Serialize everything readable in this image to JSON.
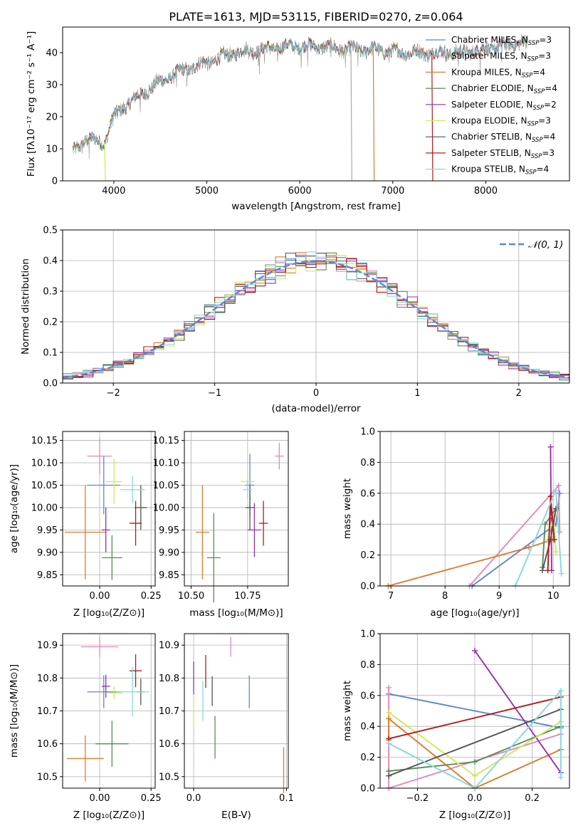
{
  "colors": {
    "Chabrier MILES": "#5b86d6",
    "Salpeter MILES": "#e488b8",
    "Kroupa MILES": "#e07b2a",
    "Chabrier ELODIE": "#5a8a5a",
    "Salpeter ELODIE": "#9a2fae",
    "Kroupa ELODIE": "#cfe85a",
    "Chabrier STELIB": "#555555",
    "Salpeter STELIB": "#b81818",
    "Kroupa STELIB": "#85d8e0",
    "normal": "#5b86d6"
  },
  "chart_data": [
    {
      "id": "spectrum",
      "type": "line",
      "title": "PLATE=1613, MJD=53115, FIBERID=0270, z=0.064",
      "xlabel": "wavelength [Angstrom, rest frame]",
      "ylabel": "Flux [fλ10⁻¹⁷ erg cm⁻² s⁻¹ A⁻¹]",
      "xlim": [
        3450,
        8900
      ],
      "ylim": [
        0,
        48
      ],
      "xticks": [
        4000,
        5000,
        6000,
        7000,
        8000
      ],
      "yticks": [
        0,
        10,
        20,
        30,
        40
      ],
      "legend_position": "top-right",
      "continuum": {
        "x": [
          3560,
          3700,
          3900,
          4000,
          4100,
          4300,
          4500,
          4700,
          5000,
          5300,
          5600,
          5900,
          6200,
          6500,
          6800,
          7100,
          7400,
          7700,
          8000,
          8300,
          8450
        ],
        "y": [
          9,
          13,
          12,
          20,
          23,
          27,
          31,
          34,
          37,
          40,
          41,
          42,
          42,
          41,
          41,
          40,
          40,
          40,
          41,
          43,
          43
        ]
      },
      "series": [
        {
          "name": "Chabrier MILES, N_SSP=3",
          "base": "Chabrier MILES",
          "nssp": "3"
        },
        {
          "name": "Salpeter MILES, N_SSP=3",
          "base": "Salpeter MILES",
          "nssp": "3"
        },
        {
          "name": "Kroupa MILES, N_SSP=4",
          "base": "Kroupa MILES",
          "nssp": "4"
        },
        {
          "name": "Chabrier ELODIE, N_SSP=4",
          "base": "Chabrier ELODIE",
          "nssp": "4"
        },
        {
          "name": "Salpeter ELODIE, N_SSP=2",
          "base": "Salpeter ELODIE",
          "nssp": "2"
        },
        {
          "name": "Kroupa ELODIE, N_SSP=3",
          "base": "Kroupa ELODIE",
          "nssp": "3"
        },
        {
          "name": "Chabrier STELIB, N_SSP=4",
          "base": "Chabrier STELIB",
          "nssp": "4"
        },
        {
          "name": "Salpeter STELIB, N_SSP=3",
          "base": "Salpeter STELIB",
          "nssp": "3"
        },
        {
          "name": "Kroupa STELIB, N_SSP=4",
          "base": "Kroupa STELIB",
          "nssp": "4"
        }
      ],
      "drops": [
        {
          "x": 3900,
          "to": 0,
          "series": "Kroupa ELODIE"
        },
        {
          "x": 6550,
          "to": 0,
          "series": "data"
        },
        {
          "x": 6790,
          "to": 0,
          "series": "Kroupa MILES"
        },
        {
          "x": 7420,
          "to": 0,
          "series": "Salpeter STELIB"
        }
      ]
    },
    {
      "id": "residuals",
      "type": "area",
      "xlabel": "(data-model)/error",
      "ylabel": "Normed distribution",
      "xlim": [
        -2.5,
        2.5
      ],
      "ylim": [
        0,
        0.5
      ],
      "xticks": [
        -2,
        -1,
        0,
        1,
        2
      ],
      "yticks": [
        0.0,
        0.1,
        0.2,
        0.3,
        0.4,
        0.5
      ],
      "legend": "𝒩(0, 1)",
      "legend_position": "top-right",
      "bin_width": 0.1
    },
    {
      "id": "age-vs-Z",
      "type": "scatter",
      "xlabel": "Z [log₁₀(Z/Z⊙)]",
      "ylabel": "age  [log₁₀(age/yr)]",
      "xlim": [
        -0.18,
        0.27
      ],
      "ylim": [
        9.825,
        10.17
      ],
      "xticks": [
        0.0,
        0.25
      ],
      "yticks": [
        9.85,
        9.9,
        9.95,
        10.0,
        10.05,
        10.1,
        10.15
      ],
      "points": [
        {
          "series": "Chabrier MILES",
          "x": 0.02,
          "xerr": 0.08,
          "y": 10.05,
          "yerr": 0.065
        },
        {
          "series": "Salpeter MILES",
          "x": 0.0,
          "xerr": 0.06,
          "y": 10.115,
          "yerr": 0.04
        },
        {
          "series": "Kroupa MILES",
          "x": -0.07,
          "xerr": 0.1,
          "y": 9.945,
          "yerr": 0.105
        },
        {
          "series": "Chabrier ELODIE",
          "x": 0.06,
          "xerr": 0.05,
          "y": 9.888,
          "yerr": 0.05
        },
        {
          "series": "Salpeter ELODIE",
          "x": 0.03,
          "xerr": 0.02,
          "y": 9.95,
          "yerr": 0.05
        },
        {
          "series": "Kroupa ELODIE",
          "x": 0.07,
          "xerr": 0.04,
          "y": 10.058,
          "yerr": 0.05
        },
        {
          "series": "Chabrier STELIB",
          "x": 0.2,
          "xerr": 0.03,
          "y": 10.0,
          "yerr": 0.05
        },
        {
          "series": "Salpeter STELIB",
          "x": 0.175,
          "xerr": 0.03,
          "y": 9.965,
          "yerr": 0.05
        },
        {
          "series": "Kroupa STELIB",
          "x": 0.16,
          "xerr": 0.06,
          "y": 10.04,
          "yerr": 0.03
        }
      ]
    },
    {
      "id": "age-vs-mass",
      "type": "scatter",
      "xlabel": "mass [log₁₀(M/M⊙)]",
      "ylabel": "",
      "xlim": [
        10.47,
        10.93
      ],
      "ylim": [
        9.825,
        10.17
      ],
      "xticks": [
        10.5,
        10.75
      ],
      "yticks": [
        9.85,
        9.9,
        9.95,
        10.0,
        10.05,
        10.1,
        10.15
      ],
      "points": [
        {
          "series": "Chabrier MILES",
          "x": 10.76,
          "xerr": 0.02,
          "y": 10.05,
          "yerr": 0.07
        },
        {
          "series": "Salpeter MILES",
          "x": 10.89,
          "xerr": 0.02,
          "y": 10.115,
          "yerr": 0.03
        },
        {
          "series": "Kroupa MILES",
          "x": 10.55,
          "xerr": 0.03,
          "y": 9.945,
          "yerr": 0.105
        },
        {
          "series": "Chabrier ELODIE",
          "x": 10.6,
          "xerr": 0.03,
          "y": 9.888,
          "yerr": 0.1
        },
        {
          "series": "Salpeter ELODIE",
          "x": 10.78,
          "xerr": 0.03,
          "y": 9.95,
          "yerr": 0.06
        },
        {
          "series": "Kroupa ELODIE",
          "x": 10.75,
          "xerr": 0.03,
          "y": 10.058,
          "yerr": 0.02
        },
        {
          "series": "Chabrier STELIB",
          "x": 10.76,
          "xerr": 0.02,
          "y": 10.0,
          "yerr": 0.05
        },
        {
          "series": "Salpeter STELIB",
          "x": 10.82,
          "xerr": 0.02,
          "y": 9.965,
          "yerr": 0.05
        },
        {
          "series": "Kroupa STELIB",
          "x": 10.75,
          "xerr": 0.02,
          "y": 10.04,
          "yerr": 0.02
        }
      ]
    },
    {
      "id": "mass-weight-vs-age",
      "type": "line",
      "xlabel": "age  [log₁₀(age/yr)]",
      "ylabel": "mass weight",
      "xlim": [
        6.8,
        10.3
      ],
      "ylim": [
        0,
        1.0
      ],
      "xticks": [
        7,
        8,
        9,
        10
      ],
      "yticks": [
        0.0,
        0.2,
        0.4,
        0.6,
        0.8,
        1.0
      ],
      "series": [
        {
          "series": "Chabrier MILES",
          "x": [
            8.5,
            10.05,
            10.12
          ],
          "y": [
            0.0,
            0.4,
            0.6
          ]
        },
        {
          "series": "Salpeter MILES",
          "x": [
            8.45,
            10.1,
            10.12
          ],
          "y": [
            0.0,
            0.65,
            0.35
          ]
        },
        {
          "series": "Kroupa MILES",
          "x": [
            6.95,
            9.55,
            10.0,
            10.02
          ],
          "y": [
            0.0,
            0.25,
            0.3,
            0.45
          ]
        },
        {
          "series": "Chabrier ELODIE",
          "x": [
            9.8,
            9.85,
            10.05
          ],
          "y": [
            0.12,
            0.4,
            0.5
          ]
        },
        {
          "series": "Salpeter ELODIE",
          "x": [
            9.95,
            9.97
          ],
          "y": [
            0.9,
            0.1
          ]
        },
        {
          "series": "Kroupa ELODIE",
          "x": [
            9.9,
            10.0,
            10.05
          ],
          "y": [
            0.3,
            0.45,
            0.22
          ]
        },
        {
          "series": "Chabrier STELIB",
          "x": [
            9.8,
            9.95,
            10.05
          ],
          "y": [
            0.1,
            0.3,
            0.5
          ]
        },
        {
          "series": "Salpeter STELIB",
          "x": [
            9.9,
            9.95,
            10.02
          ],
          "y": [
            0.1,
            0.58,
            0.3
          ]
        },
        {
          "series": "Kroupa STELIB",
          "x": [
            9.3,
            10.05,
            10.15
          ],
          "y": [
            0.0,
            0.62,
            0.08
          ]
        }
      ]
    },
    {
      "id": "mass-vs-Z",
      "type": "scatter",
      "xlabel": "Z [log₁₀(Z/Z⊙)]",
      "ylabel": "mass [log₁₀(M/M⊙)]",
      "xlim": [
        -0.18,
        0.27
      ],
      "ylim": [
        10.465,
        10.935
      ],
      "xticks": [
        0.0,
        0.25
      ],
      "yticks": [
        10.5,
        10.6,
        10.7,
        10.8,
        10.9
      ],
      "points": [
        {
          "series": "Chabrier MILES",
          "x": 0.02,
          "xerr": 0.08,
          "y": 10.758,
          "yerr": 0.05
        },
        {
          "series": "Salpeter MILES",
          "x": 0.0,
          "xerr": 0.09,
          "y": 10.895,
          "yerr": 0.03
        },
        {
          "series": "Kroupa MILES",
          "x": -0.07,
          "xerr": 0.09,
          "y": 10.555,
          "yerr": 0.07
        },
        {
          "series": "Chabrier ELODIE",
          "x": 0.06,
          "xerr": 0.08,
          "y": 10.6,
          "yerr": 0.07
        },
        {
          "series": "Salpeter ELODIE",
          "x": 0.03,
          "xerr": 0.02,
          "y": 10.775,
          "yerr": 0.035
        },
        {
          "series": "Kroupa ELODIE",
          "x": 0.07,
          "xerr": 0.04,
          "y": 10.755,
          "yerr": 0.02
        },
        {
          "series": "Chabrier STELIB",
          "x": 0.2,
          "xerr": 0.02,
          "y": 10.758,
          "yerr": 0.04
        },
        {
          "series": "Salpeter STELIB",
          "x": 0.175,
          "xerr": 0.03,
          "y": 10.822,
          "yerr": 0.05
        },
        {
          "series": "Kroupa STELIB",
          "x": 0.16,
          "xerr": 0.08,
          "y": 10.758,
          "yerr": 0.075
        }
      ]
    },
    {
      "id": "mass-vs-ebv",
      "type": "scatter",
      "xlabel": "E(B-V)",
      "ylabel": "",
      "xlim": [
        -0.01,
        0.102
      ],
      "ylim": [
        10.465,
        10.935
      ],
      "xticks": [
        0.0,
        0.1
      ],
      "yticks": [
        10.5,
        10.6,
        10.7,
        10.8,
        10.9
      ],
      "points": [
        {
          "series": "Chabrier MILES",
          "x": 0.06,
          "y": 10.758,
          "yerr": 0.05
        },
        {
          "series": "Salpeter MILES",
          "x": 0.04,
          "y": 10.895,
          "yerr": 0.03
        },
        {
          "series": "Kroupa MILES",
          "x": 0.097,
          "y": 10.52,
          "yerr": 0.07
        },
        {
          "series": "Chabrier ELODIE",
          "x": 0.023,
          "y": 10.62,
          "yerr": 0.065
        },
        {
          "series": "Salpeter ELODIE",
          "x": 0.0,
          "y": 10.8,
          "yerr": 0.05
        },
        {
          "series": "Kroupa ELODIE",
          "x": 0.0,
          "y": 10.7,
          "yerr": 0.04
        },
        {
          "series": "Chabrier STELIB",
          "x": 0.02,
          "y": 10.76,
          "yerr": 0.045
        },
        {
          "series": "Salpeter STELIB",
          "x": 0.013,
          "y": 10.82,
          "yerr": 0.05
        },
        {
          "series": "Kroupa STELIB",
          "x": 0.01,
          "y": 10.73,
          "yerr": 0.06
        }
      ]
    },
    {
      "id": "mass-weight-vs-Z",
      "type": "line",
      "xlabel": "Z [log₁₀(Z/Z⊙)]",
      "ylabel": "mass weight",
      "xlim": [
        -0.33,
        0.33
      ],
      "ylim": [
        0,
        1.0
      ],
      "xticks": [
        -0.2,
        0.0,
        0.2
      ],
      "yticks": [
        0.0,
        0.2,
        0.4,
        0.6,
        0.8,
        1.0
      ],
      "series": [
        {
          "series": "Chabrier MILES",
          "x": [
            -0.3,
            0.3
          ],
          "y": [
            0.61,
            0.39
          ]
        },
        {
          "series": "Salpeter MILES",
          "x": [
            -0.3,
            -0.3,
            0.3
          ],
          "y": [
            0.65,
            0.0,
            0.35
          ]
        },
        {
          "series": "Kroupa MILES",
          "x": [
            -0.3,
            -0.3,
            0.0,
            0.3
          ],
          "y": [
            0.31,
            0.45,
            0.0,
            0.25
          ]
        },
        {
          "series": "Chabrier ELODIE",
          "x": [
            -0.3,
            0.0,
            0.3
          ],
          "y": [
            0.11,
            0.17,
            0.4
          ]
        },
        {
          "series": "Salpeter ELODIE",
          "x": [
            0.0,
            0.3
          ],
          "y": [
            0.89,
            0.1
          ]
        },
        {
          "series": "Kroupa ELODIE",
          "x": [
            -0.3,
            0.0,
            0.3
          ],
          "y": [
            0.49,
            0.08,
            0.43
          ]
        },
        {
          "series": "Chabrier STELIB",
          "x": [
            -0.3,
            0.3
          ],
          "y": [
            0.08,
            0.51
          ]
        },
        {
          "series": "Salpeter STELIB",
          "x": [
            -0.3,
            0.3
          ],
          "y": [
            0.32,
            0.59
          ]
        },
        {
          "series": "Kroupa STELIB",
          "x": [
            -0.3,
            0.0,
            0.3,
            0.3
          ],
          "y": [
            0.29,
            0.0,
            0.63,
            0.07
          ]
        }
      ]
    }
  ]
}
